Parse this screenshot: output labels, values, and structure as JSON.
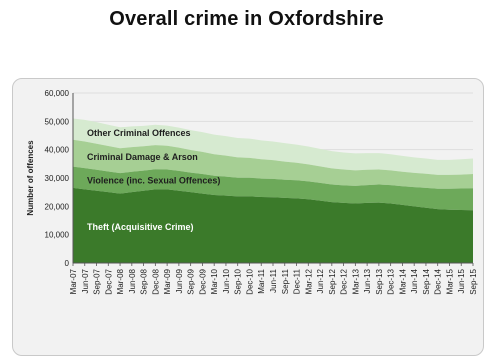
{
  "title": "Overall crime in Oxfordshire",
  "colors": {
    "theft": "#3b7a2a",
    "violence": "#6da95a",
    "criminal_damage": "#a6cf94",
    "other": "#d6ead0",
    "frame_bg": "#f2f2f2",
    "axis": "#555555"
  },
  "chart_data": {
    "type": "area",
    "stacked": true,
    "title": "",
    "xlabel": "",
    "ylabel": "Number of offences",
    "ylim": [
      0,
      60000
    ],
    "yticks": [
      "0",
      "10,000",
      "20,000",
      "30,000",
      "40,000",
      "50,000",
      "60,000"
    ],
    "ytick_values": [
      0,
      10000,
      20000,
      30000,
      40000,
      50000,
      60000
    ],
    "x": [
      "Mar-07",
      "Jun-07",
      "Sep-07",
      "Dec-07",
      "Mar-08",
      "Jun-08",
      "Sep-08",
      "Dec-08",
      "Mar-09",
      "Jun-09",
      "Sep-09",
      "Dec-09",
      "Mar-10",
      "Jun-10",
      "Sep-10",
      "Dec-10",
      "Mar-11",
      "Jun-11",
      "Sep-11",
      "Dec-11",
      "Mar-12",
      "Jun-12",
      "Sep-12",
      "Dec-12",
      "Mar-13",
      "Jun-13",
      "Sep-13",
      "Dec-13",
      "Mar-14",
      "Jun-14",
      "Sep-14",
      "Dec-14",
      "Mar-15",
      "Jun-15",
      "Sep-15"
    ],
    "series": [
      {
        "name": "Theft (Acquisitive Crime)",
        "key": "theft",
        "values": [
          26500,
          26000,
          25500,
          25000,
          24500,
          25000,
          25500,
          26000,
          26000,
          25500,
          25000,
          24500,
          24000,
          23800,
          23500,
          23500,
          23300,
          23200,
          23000,
          22800,
          22500,
          22000,
          21500,
          21200,
          21000,
          21200,
          21300,
          21000,
          20500,
          20000,
          19500,
          19000,
          18800,
          18700,
          18600
        ]
      },
      {
        "name": "Violence (inc. Sexual Offences)",
        "key": "violence",
        "values": [
          7500,
          7500,
          7400,
          7300,
          7200,
          7200,
          7100,
          7100,
          7000,
          7000,
          6900,
          6900,
          6800,
          6700,
          6600,
          6600,
          6500,
          6500,
          6400,
          6400,
          6300,
          6300,
          6200,
          6200,
          6200,
          6300,
          6400,
          6500,
          6600,
          6800,
          7000,
          7200,
          7400,
          7600,
          7800
        ]
      },
      {
        "name": "Criminal Damage & Arson",
        "key": "criminal_damage",
        "values": [
          9500,
          9400,
          9200,
          9000,
          8800,
          8700,
          8600,
          8500,
          8400,
          8200,
          8000,
          7800,
          7600,
          7400,
          7200,
          7000,
          6800,
          6600,
          6400,
          6200,
          6000,
          5800,
          5700,
          5600,
          5500,
          5400,
          5300,
          5200,
          5100,
          5000,
          5000,
          4900,
          4900,
          4900,
          5000
        ]
      },
      {
        "name": "Other Criminal Offences",
        "key": "other",
        "values": [
          7500,
          7600,
          7600,
          7500,
          7400,
          7300,
          7200,
          7200,
          7100,
          7100,
          7000,
          7000,
          6900,
          6900,
          6800,
          6800,
          6700,
          6600,
          6500,
          6400,
          6300,
          6200,
          6100,
          6000,
          6000,
          5900,
          5800,
          5700,
          5600,
          5500,
          5400,
          5300,
          5300,
          5400,
          5500
        ]
      }
    ]
  }
}
